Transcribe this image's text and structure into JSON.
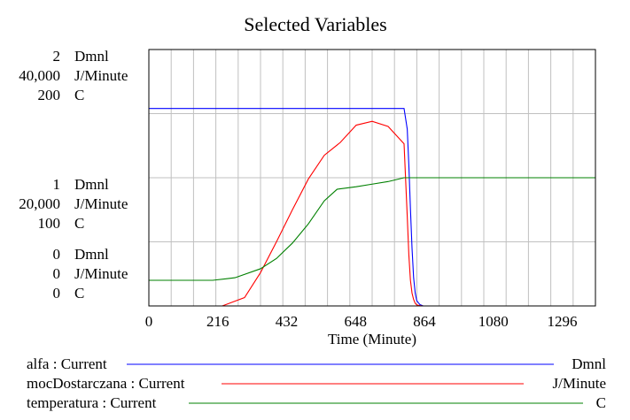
{
  "chart_data": {
    "type": "line",
    "title": "Selected Variables",
    "xlabel": "Time (Minute)",
    "xlim": [
      0,
      1400
    ],
    "x_ticks": [
      0,
      216,
      432,
      648,
      864,
      1080,
      1296
    ],
    "grid": true,
    "axes": [
      {
        "unit": "Dmnl",
        "range": [
          0,
          2
        ],
        "tick_labels": [
          "0",
          "1",
          "2"
        ]
      },
      {
        "unit": "J/Minute",
        "range": [
          0,
          40000
        ],
        "tick_labels": [
          "0",
          "20,000",
          "40,000"
        ]
      },
      {
        "unit": "C",
        "range": [
          0,
          200
        ],
        "tick_labels": [
          "0",
          "100",
          "200"
        ]
      }
    ],
    "legend_position": "bottom",
    "series": [
      {
        "name": "alfa : Current",
        "unit": "Dmnl",
        "axis": 0,
        "color": "#0000ff",
        "x": [
          0,
          800,
          810,
          815,
          820,
          825,
          830,
          835,
          840,
          850,
          860,
          1400
        ],
        "y": [
          1.54,
          1.54,
          1.38,
          1.1,
          0.76,
          0.45,
          0.22,
          0.1,
          0.04,
          0.01,
          0,
          0
        ]
      },
      {
        "name": "mocDostarczana : Current",
        "unit": "J/Minute",
        "axis": 1,
        "color": "#ff0000",
        "x": [
          0,
          230,
          300,
          350,
          400,
          450,
          500,
          550,
          600,
          650,
          700,
          750,
          800,
          810,
          815,
          820,
          825,
          830,
          835,
          840,
          850,
          860,
          1400
        ],
        "y": [
          0,
          0,
          1300,
          5200,
          10000,
          15000,
          19800,
          23500,
          25500,
          28200,
          28800,
          28000,
          25300,
          14000,
          8000,
          4000,
          2000,
          1000,
          400,
          150,
          50,
          0,
          0
        ]
      },
      {
        "name": "temperatura : Current",
        "unit": "C",
        "axis": 2,
        "color": "#008000",
        "x": [
          0,
          200,
          270,
          350,
          400,
          450,
          500,
          550,
          590,
          650,
          700,
          750,
          800,
          1400
        ],
        "y": [
          20,
          20,
          22,
          29,
          37,
          49,
          64,
          82,
          91,
          93,
          95,
          97,
          100,
          100
        ]
      }
    ]
  }
}
